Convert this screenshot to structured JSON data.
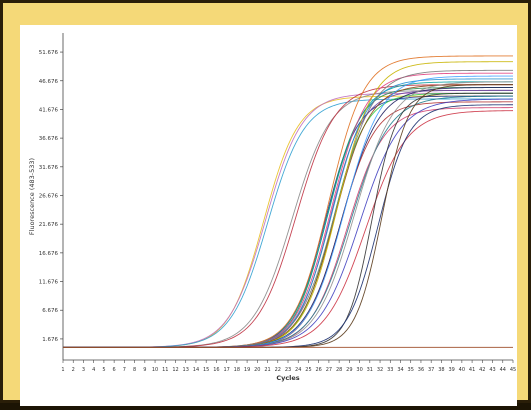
{
  "colors": {
    "frame": "#f5d978",
    "panel": "#ffffff"
  },
  "chart_data": {
    "type": "line",
    "title": "",
    "xlabel": "Cycles",
    "ylabel": "Fluorescence (483-533)",
    "xlim": [
      1,
      45
    ],
    "ylim": [
      -2,
      55
    ],
    "x_ticks": [
      1,
      2,
      3,
      4,
      5,
      6,
      7,
      8,
      9,
      10,
      11,
      12,
      13,
      14,
      15,
      16,
      17,
      18,
      19,
      20,
      21,
      22,
      23,
      24,
      25,
      26,
      27,
      28,
      29,
      30,
      31,
      32,
      33,
      34,
      35,
      36,
      37,
      38,
      39,
      40,
      41,
      42,
      43,
      44,
      45
    ],
    "y_ticks": [
      "1.676",
      "6.676",
      "11.676",
      "16.676",
      "21.676",
      "26.676",
      "31.676",
      "36.676",
      "41.676",
      "46.676",
      "51.676"
    ],
    "y_tick_values": [
      1.676,
      6.676,
      11.676,
      16.676,
      21.676,
      26.676,
      31.676,
      36.676,
      41.676,
      46.676,
      51.676
    ],
    "grid": false,
    "legend": "none",
    "curve_model": "sigmoid: y = base + (plateau - base) / (1 + exp(-(x - midpoint) / slope))",
    "baseline": 0.2,
    "series": [
      {
        "color": "#e8c020",
        "midpoint": 20.6,
        "slope": 1.7,
        "plateau": 44.0
      },
      {
        "color": "#c070c0",
        "midpoint": 20.8,
        "slope": 1.8,
        "plateau": 44.5
      },
      {
        "color": "#30a0d0",
        "midpoint": 21.0,
        "slope": 1.8,
        "plateau": 43.5
      },
      {
        "color": "#888888",
        "midpoint": 23.4,
        "slope": 1.9,
        "plateau": 45.0
      },
      {
        "color": "#c03040",
        "midpoint": 23.8,
        "slope": 1.9,
        "plateau": 46.0
      },
      {
        "color": "#1c2f8f",
        "midpoint": 26.6,
        "slope": 1.6,
        "plateau": 44.0
      },
      {
        "color": "#2e8b57",
        "midpoint": 26.8,
        "slope": 1.6,
        "plateau": 45.5
      },
      {
        "color": "#00a0a0",
        "midpoint": 26.9,
        "slope": 1.7,
        "plateau": 46.5
      },
      {
        "color": "#e07020",
        "midpoint": 27.0,
        "slope": 1.7,
        "plateau": 51.0
      },
      {
        "color": "#6a3fa0",
        "midpoint": 27.1,
        "slope": 1.6,
        "plateau": 45.0
      },
      {
        "color": "#e04080",
        "midpoint": 27.2,
        "slope": 1.7,
        "plateau": 48.0
      },
      {
        "color": "#1f8fd0",
        "midpoint": 27.3,
        "slope": 1.7,
        "plateau": 47.0
      },
      {
        "color": "#2ecc40",
        "midpoint": 27.4,
        "slope": 1.6,
        "plateau": 44.5
      },
      {
        "color": "#8b4513",
        "midpoint": 27.6,
        "slope": 1.7,
        "plateau": 46.0
      },
      {
        "color": "#777777",
        "midpoint": 27.7,
        "slope": 1.8,
        "plateau": 48.5
      },
      {
        "color": "#c8b400",
        "midpoint": 27.9,
        "slope": 1.7,
        "plateau": 50.0
      },
      {
        "color": "#b03030",
        "midpoint": 28.1,
        "slope": 1.7,
        "plateau": 43.0
      },
      {
        "color": "#202060",
        "midpoint": 28.3,
        "slope": 1.8,
        "plateau": 45.5
      },
      {
        "color": "#40a0ff",
        "midpoint": 28.5,
        "slope": 1.8,
        "plateau": 47.5
      },
      {
        "color": "#d04070",
        "midpoint": 28.8,
        "slope": 1.8,
        "plateau": 42.0
      },
      {
        "color": "#20808f",
        "midpoint": 29.1,
        "slope": 1.9,
        "plateau": 44.0
      },
      {
        "color": "#909090",
        "midpoint": 29.5,
        "slope": 1.9,
        "plateau": 46.5
      },
      {
        "color": "#4040c0",
        "midpoint": 30.0,
        "slope": 2.0,
        "plateau": 43.5
      },
      {
        "color": "#cc3344",
        "midpoint": 30.6,
        "slope": 2.0,
        "plateau": 41.5
      },
      {
        "color": "#333333",
        "midpoint": 31.2,
        "slope": 1.2,
        "plateau": 44.5
      },
      {
        "color": "#1a2f6f",
        "midpoint": 31.8,
        "slope": 1.5,
        "plateau": 42.5
      },
      {
        "color": "#5a3a1a",
        "midpoint": 32.2,
        "slope": 1.3,
        "plateau": 46.0
      },
      {
        "color": "#a0522d",
        "midpoint": 45.0,
        "slope": 1.0,
        "plateau": 0.2
      }
    ]
  }
}
